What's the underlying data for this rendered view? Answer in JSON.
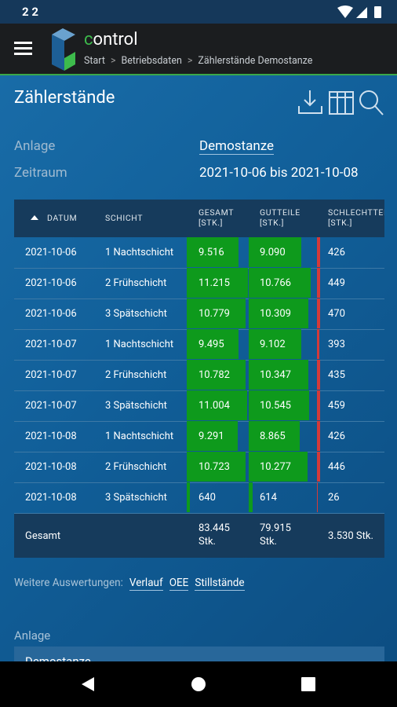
{
  "status_bar": {
    "time": "2 2"
  },
  "header": {
    "brand": "control",
    "breadcrumb": [
      "Start",
      "Betriebsdaten",
      "Zählerstände Demostanze"
    ]
  },
  "page": {
    "title": "Zählerstände",
    "fields": [
      {
        "label": "Anlage",
        "value": "Demostanze"
      },
      {
        "label": "Zeitraum",
        "value": "2021-10-06 bis 2021-10-08"
      }
    ]
  },
  "table": {
    "columns": [
      {
        "name": "DATUM"
      },
      {
        "name": "SCHICHT"
      },
      {
        "name": "GESAMT",
        "unit": "[STK.]"
      },
      {
        "name": "GUTTEILE",
        "unit": "[STK.]"
      },
      {
        "name": "SCHLECHTTEILE",
        "unit": "[STK.]"
      }
    ],
    "rows": [
      [
        "2021-10-06",
        "1 Nachtschicht",
        "9.516",
        "9.090",
        "426"
      ],
      [
        "2021-10-06",
        "2 Frühschicht",
        "11.215",
        "10.766",
        "449"
      ],
      [
        "2021-10-06",
        "3 Spätschicht",
        "10.779",
        "10.309",
        "470"
      ],
      [
        "2021-10-07",
        "1 Nachtschicht",
        "9.495",
        "9.102",
        "393"
      ],
      [
        "2021-10-07",
        "2 Frühschicht",
        "10.782",
        "10.347",
        "435"
      ],
      [
        "2021-10-07",
        "3 Spätschicht",
        "11.004",
        "10.545",
        "459"
      ],
      [
        "2021-10-08",
        "1 Nachtschicht",
        "9.291",
        "8.865",
        "426"
      ],
      [
        "2021-10-08",
        "2 Frühschicht",
        "10.723",
        "10.277",
        "446"
      ],
      [
        "2021-10-08",
        "3 Spätschicht",
        "640",
        "614",
        "26"
      ]
    ],
    "total": [
      "Gesamt",
      "83.445 Stk.",
      "79.915 Stk.",
      "3.530 Stk."
    ]
  },
  "more": {
    "label": "Weitere Auswertungen:",
    "links": [
      "Verlauf",
      "OEE",
      "Stillstände"
    ]
  },
  "filter": {
    "label": "Anlage",
    "value": "Demostanze"
  }
}
